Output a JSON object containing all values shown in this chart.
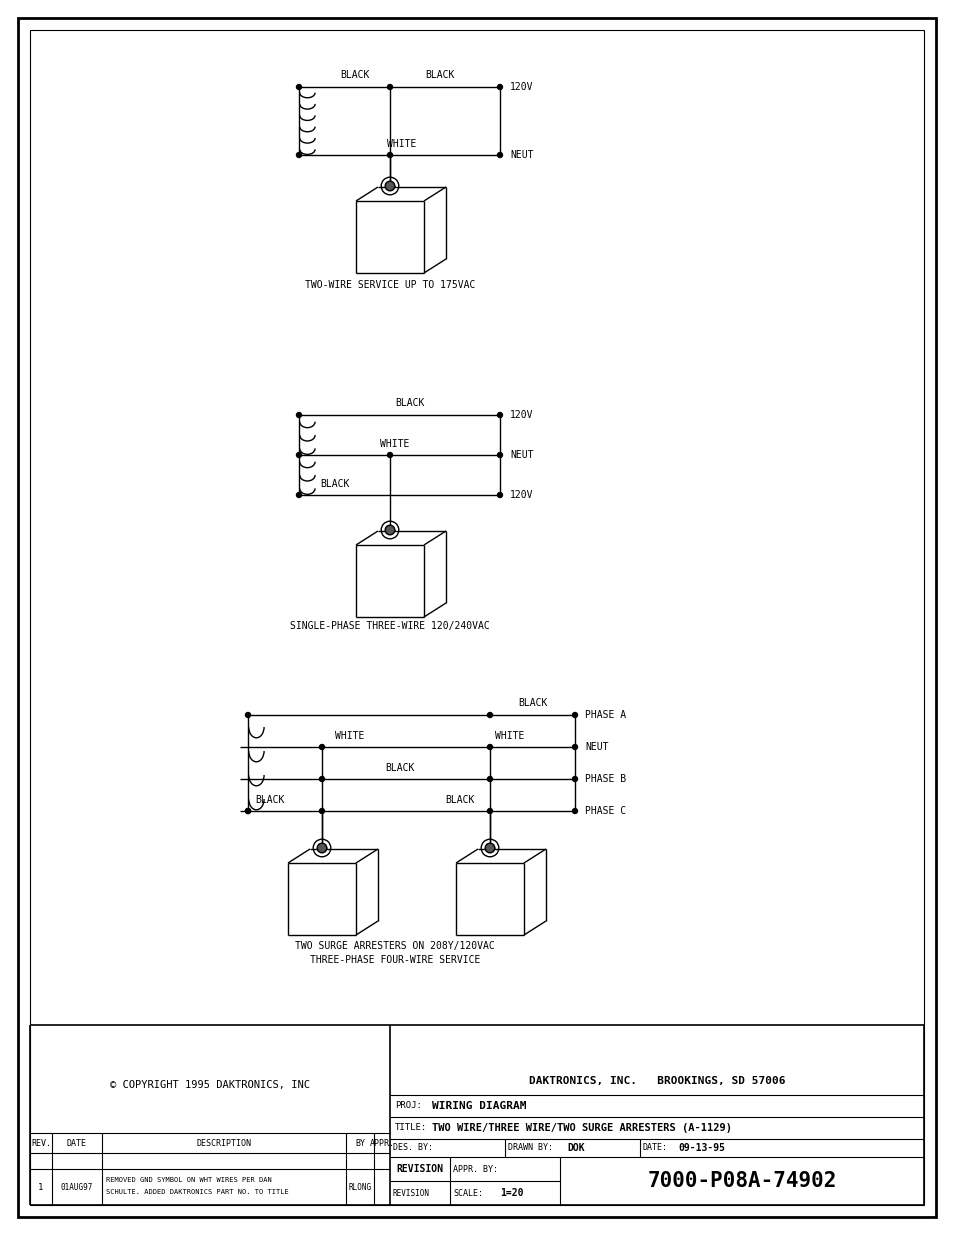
{
  "bg_color": "#ffffff",
  "title_block": {
    "company": "DAKTRONICS, INC.   BROOKINGS, SD 57006",
    "proj_label": "PROJ:",
    "proj": "WIRING DIAGRAM",
    "title_label": "TITLE:",
    "title": "TWO WIRE/THREE WIRE/TWO SURGE ARRESTERS (A-1129)",
    "des_label": "DES. BY:",
    "drawn_label": "DRAWN BY:",
    "drawn": "DOK",
    "date_label": "DATE:",
    "date": "09-13-95",
    "rev_label": "REVISION",
    "appr_label": "APPR. BY:",
    "scale_label": "SCALE:",
    "scale": "1=20",
    "drawing_no": "7000-P08A-74902",
    "copyright": "© COPYRIGHT 1995 DAKTRONICS, INC",
    "rev_no": "1",
    "rev_date": "01AUG97",
    "rev_by": "RLONG",
    "rev_appr": "",
    "rev_hdr": "REV.",
    "date_hdr": "DATE",
    "desc_hdr": "DESCRIPTION",
    "by_hdr": "BY",
    "appr_hdr": "APPR."
  },
  "diagram1": {
    "caption": "TWO-WIRE SERVICE UP TO 175VAC",
    "labels": {
      "black1": "BLACK",
      "black2": "BLACK",
      "white": "WHITE",
      "v120": "120V",
      "neut": "NEUT"
    }
  },
  "diagram2": {
    "caption": "SINGLE-PHASE THREE-WIRE 120/240VAC",
    "labels": {
      "black1": "BLACK",
      "white": "WHITE",
      "black2": "BLACK",
      "v120_top": "120V",
      "neut": "NEUT",
      "v120_bot": "120V"
    }
  },
  "diagram3": {
    "caption1": "TWO SURGE ARRESTERS ON 208Y/120VAC",
    "caption2": "THREE-PHASE FOUR-WIRE SERVICE",
    "labels": {
      "black_top": "BLACK",
      "white_left": "WHITE",
      "white_right": "WHITE",
      "black_mid": "BLACK",
      "black_left": "BLACK",
      "black_right": "BLACK",
      "phase_a": "PHASE A",
      "neut": "NEUT",
      "phase_b": "PHASE B",
      "phase_c": "PHASE C"
    }
  }
}
